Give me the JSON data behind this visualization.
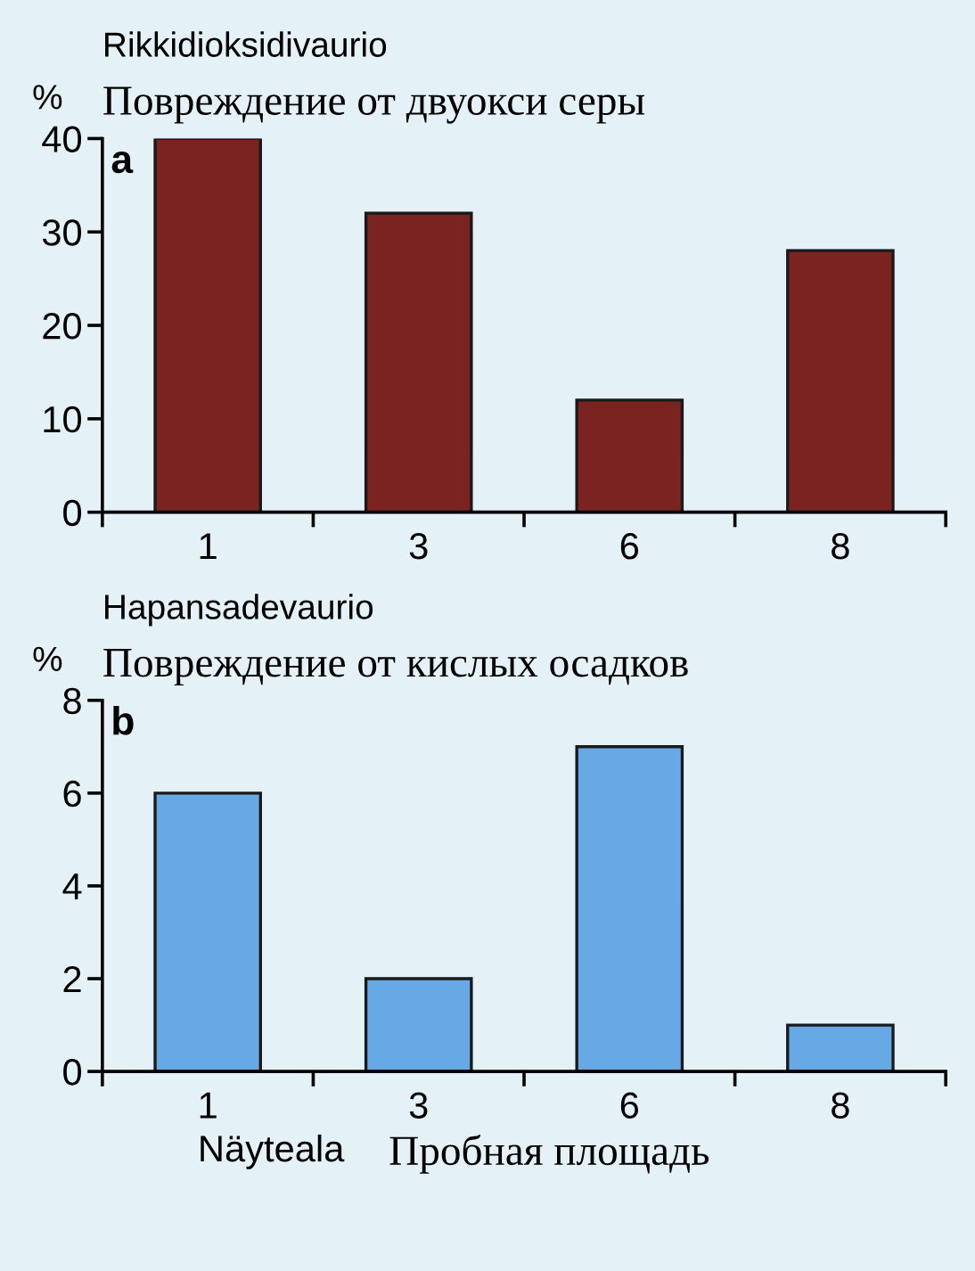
{
  "chart_data": [
    {
      "type": "bar",
      "title": "Rikkidioksidivaurio",
      "subtitle": "Повреждение от двуокси серы",
      "ylabel": "%",
      "annotations": [
        "a"
      ],
      "categories": [
        "1",
        "3",
        "6",
        "8"
      ],
      "values": [
        40,
        32,
        12,
        28
      ],
      "color": "#7b2320",
      "ylim": [
        0,
        40
      ],
      "yticks": [
        0,
        10,
        20,
        30,
        40
      ],
      "grid": false
    },
    {
      "type": "bar",
      "title": "Hapansadevaurio",
      "subtitle": "Повреждение от кислых осадков",
      "ylabel": "%",
      "xlabel": "Näyteala",
      "annotations": [
        "b",
        "Пробная площадь"
      ],
      "categories": [
        "1",
        "3",
        "6",
        "8"
      ],
      "values": [
        6,
        2,
        7,
        1
      ],
      "color": "#67a9e4",
      "ylim": [
        0,
        8
      ],
      "yticks": [
        0,
        2,
        4,
        6,
        8
      ],
      "grid": false
    }
  ]
}
